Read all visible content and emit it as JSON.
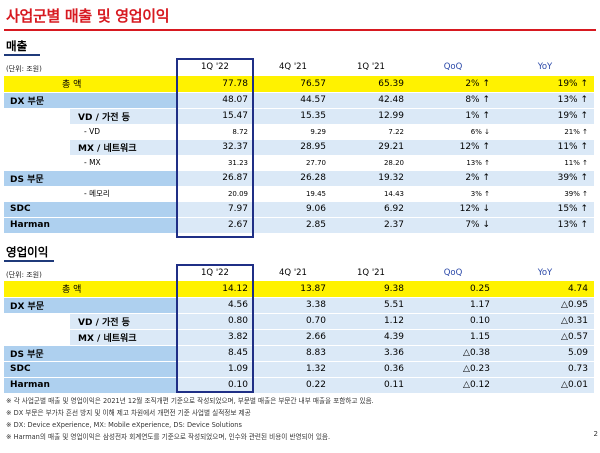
{
  "title": "사업군별 매출 및 영업이익",
  "sections": {
    "sales": {
      "title": "매출",
      "unit": "(단위: 조원)",
      "headers": [
        "1Q '22",
        "4Q '21",
        "1Q '21",
        "QoQ",
        "YoY"
      ],
      "rows": [
        {
          "type": "total",
          "label": "총       액",
          "values": [
            "77.78",
            "76.57",
            "65.39",
            "2% ↑",
            "19% ↑"
          ]
        },
        {
          "type": "main",
          "label": "DX 부문",
          "values": [
            "48.07",
            "44.57",
            "42.48",
            "8% ↑",
            "13% ↑"
          ]
        },
        {
          "type": "sub",
          "label": "VD / 가전 등",
          "values": [
            "15.47",
            "15.35",
            "12.99",
            "1% ↑",
            "19% ↑"
          ]
        },
        {
          "type": "mini",
          "label": "- VD",
          "values": [
            "8.72",
            "9.29",
            "7.22",
            "6% ↓",
            "21% ↑"
          ]
        },
        {
          "type": "sub",
          "label": "MX / 네트워크",
          "values": [
            "32.37",
            "28.95",
            "29.21",
            "12% ↑",
            "11% ↑"
          ]
        },
        {
          "type": "mini",
          "label": "- MX",
          "values": [
            "31.23",
            "27.70",
            "28.20",
            "13% ↑",
            "11% ↑"
          ]
        },
        {
          "type": "main",
          "label": "DS 부문",
          "values": [
            "26.87",
            "26.28",
            "19.32",
            "2% ↑",
            "39% ↑"
          ]
        },
        {
          "type": "mini",
          "label": "- 메모리",
          "values": [
            "20.09",
            "19.45",
            "14.43",
            "3% ↑",
            "39% ↑"
          ]
        },
        {
          "type": "main",
          "label": "SDC",
          "values": [
            "7.97",
            "9.06",
            "6.92",
            "12% ↓",
            "15% ↑"
          ]
        },
        {
          "type": "main",
          "label": "Harman",
          "values": [
            "2.67",
            "2.85",
            "2.37",
            "7% ↓",
            "13% ↑"
          ]
        }
      ]
    },
    "op": {
      "title": "영업이익",
      "unit": "(단위: 조원)",
      "headers": [
        "1Q '22",
        "4Q '21",
        "1Q '21",
        "QoQ",
        "YoY"
      ],
      "rows": [
        {
          "type": "total",
          "label": "총       액",
          "values": [
            "14.12",
            "13.87",
            "9.38",
            "0.25",
            "4.74"
          ]
        },
        {
          "type": "main",
          "label": "DX 부문",
          "values": [
            "4.56",
            "3.38",
            "5.51",
            "1.17",
            "△0.95"
          ]
        },
        {
          "type": "sub",
          "label": "VD / 가전 등",
          "values": [
            "0.80",
            "0.70",
            "1.12",
            "0.10",
            "△0.31"
          ]
        },
        {
          "type": "sub",
          "label": "MX / 네트워크",
          "values": [
            "3.82",
            "2.66",
            "4.39",
            "1.15",
            "△0.57"
          ]
        },
        {
          "type": "main",
          "label": "DS 부문",
          "values": [
            "8.45",
            "8.83",
            "3.36",
            "△0.38",
            "5.09"
          ]
        },
        {
          "type": "main",
          "label": "SDC",
          "values": [
            "1.09",
            "1.32",
            "0.36",
            "△0.23",
            "0.73"
          ]
        },
        {
          "type": "main",
          "label": "Harman",
          "values": [
            "0.10",
            "0.22",
            "0.11",
            "△0.12",
            "△0.01"
          ]
        }
      ]
    }
  },
  "notes": [
    "※ 각 사업군별 매출 및 영업이익은 2021년 12월 조직개편 기준으로 작성되었으며, 부문별 매출은 부문간 내부 매출을 포함하고 있음.",
    "※ DX 부문은 부가차 흔선 방지 및 이해 제고 차원에서 개편전 기준 사업별 실적정보 제공",
    "※ DX: Device eXperience, MX: Mobile eXperience, DS: Device Solutions",
    "※ Harman의 매출 및 영업이익은 삼성전자 회계연도를 기준으로 작성되었으며, 인수와 관련된 비용이 반영되어 있음."
  ],
  "page_number": "2",
  "colors": {
    "title": "#d71920",
    "total_row": "#fff200",
    "light_blue": "#dbe9f7",
    "mid_blue": "#aed0ef",
    "box": "#1f2f86",
    "accent_blue": "#2a48a8"
  }
}
